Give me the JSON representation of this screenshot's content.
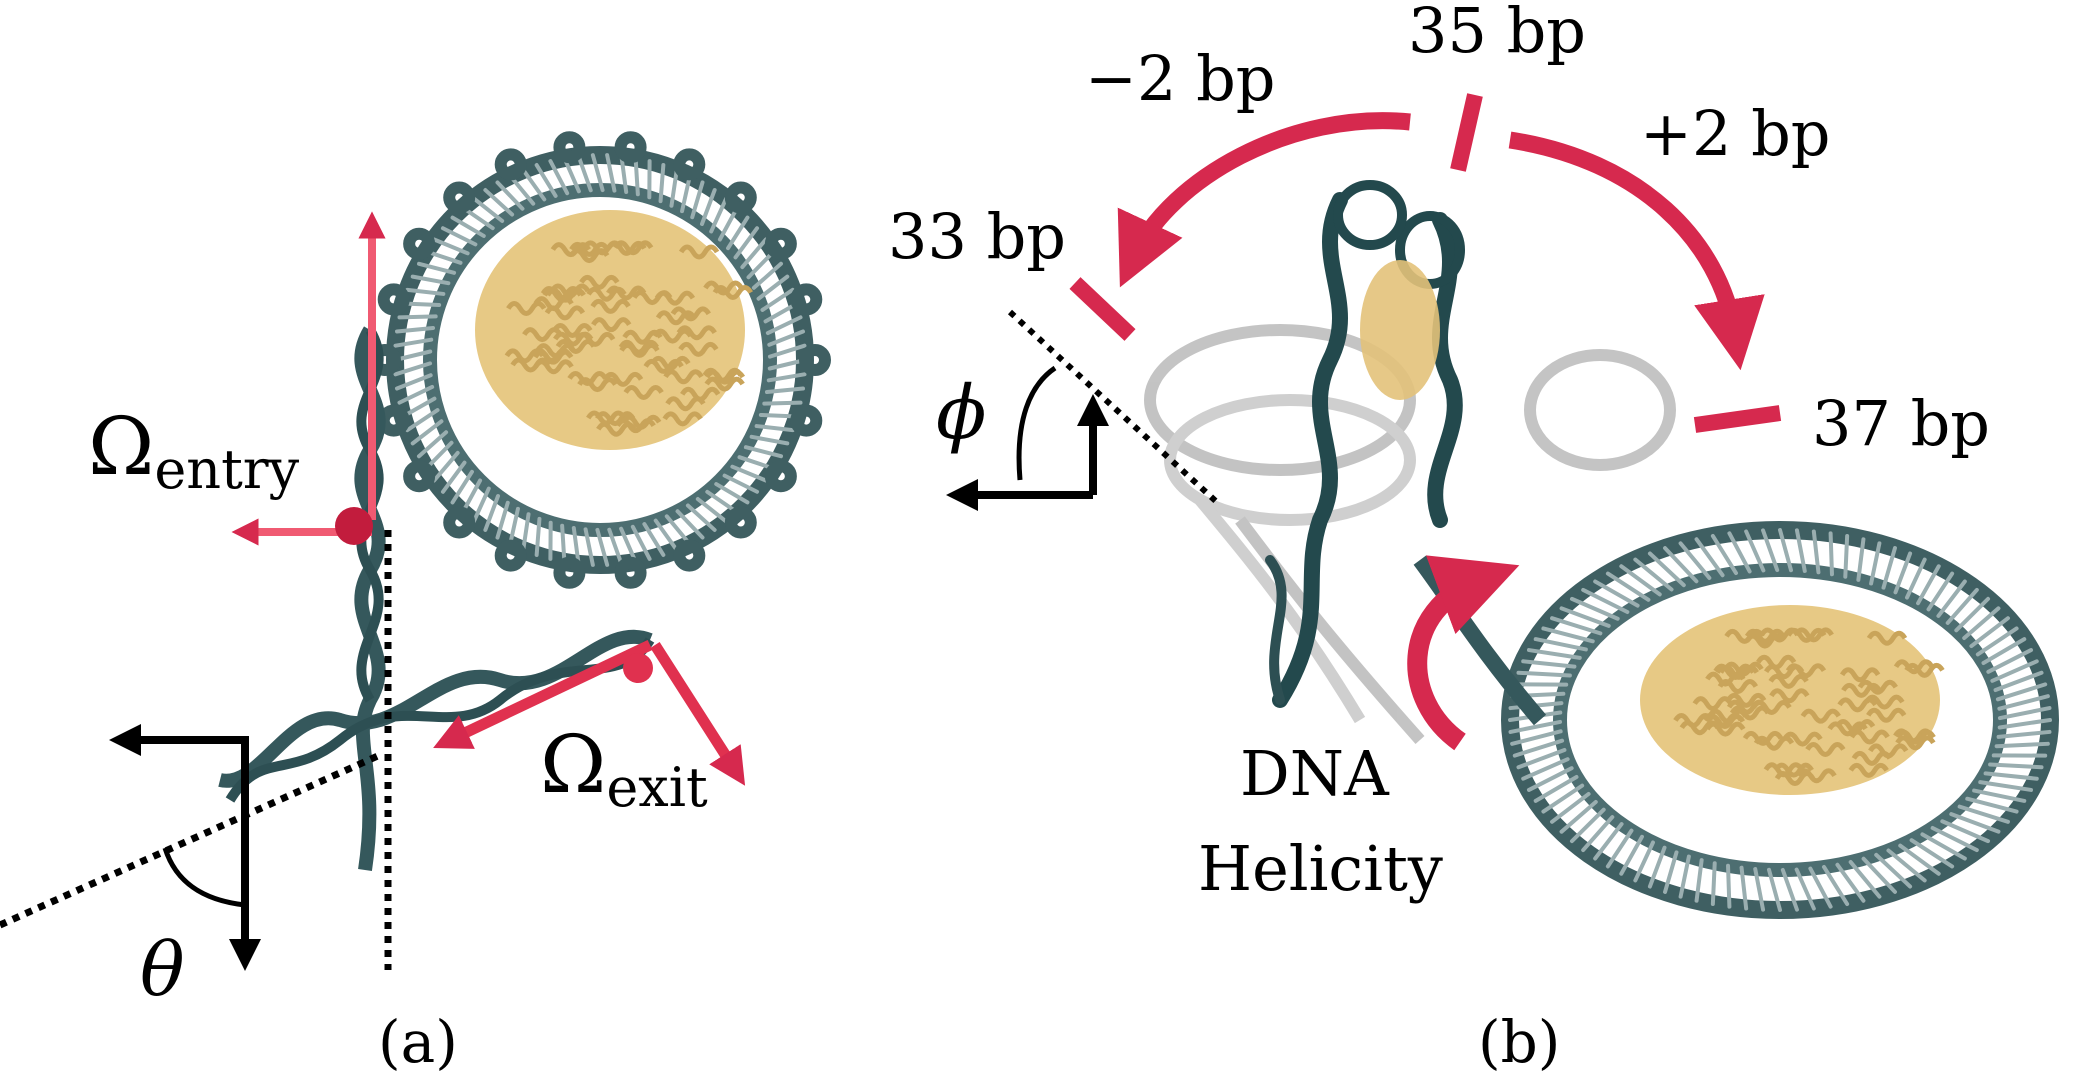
{
  "panel_a": {
    "label": "(a)",
    "omega_entry_symbol": "Ω",
    "omega_entry_sub": "entry",
    "omega_exit_symbol": "Ω",
    "omega_exit_sub": "exit",
    "theta": "θ"
  },
  "panel_b": {
    "label": "(b)",
    "phi": "ϕ",
    "bp_center": "35 bp",
    "bp_minus": "−2 bp",
    "bp_plus": "+2 bp",
    "bp_left": "33 bp",
    "bp_right": "37 bp",
    "helicity_line1": "DNA",
    "helicity_line2": "Helicity"
  },
  "colors": {
    "dna": "#3f5f62",
    "dna_dark": "#23494d",
    "protein": "#e3c27a",
    "accent": "#d6294e",
    "axis": "#000000"
  }
}
